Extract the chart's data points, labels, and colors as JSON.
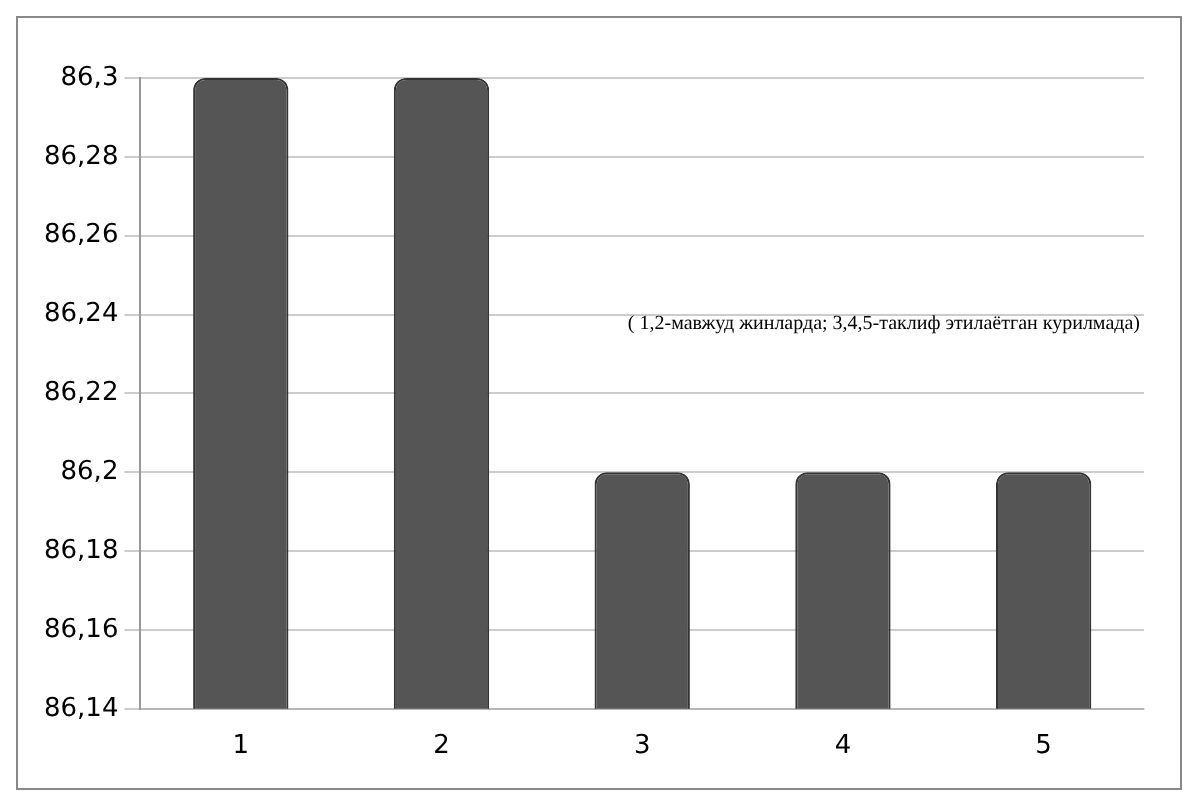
{
  "chart_data": {
    "type": "bar",
    "categories": [
      "1",
      "2",
      "3",
      "4",
      "5"
    ],
    "values": [
      86.3,
      86.3,
      86.2,
      86.2,
      86.2
    ],
    "color": "#555555",
    "ylim": [
      86.14,
      86.3
    ],
    "yticks": [
      {
        "value": 86.14,
        "label": "86,14"
      },
      {
        "value": 86.16,
        "label": "86,16"
      },
      {
        "value": 86.18,
        "label": "86,18"
      },
      {
        "value": 86.2,
        "label": "86,2"
      },
      {
        "value": 86.22,
        "label": "86,22"
      },
      {
        "value": 86.24,
        "label": "86,24"
      },
      {
        "value": 86.26,
        "label": "86,26"
      },
      {
        "value": 86.28,
        "label": "86,28"
      },
      {
        "value": 86.3,
        "label": "86,3"
      }
    ],
    "grid": "y",
    "annotations": [
      "( 1,2-мавжуд жинларда; 3,4,5-таклиф этилаётган курилмада)"
    ]
  }
}
